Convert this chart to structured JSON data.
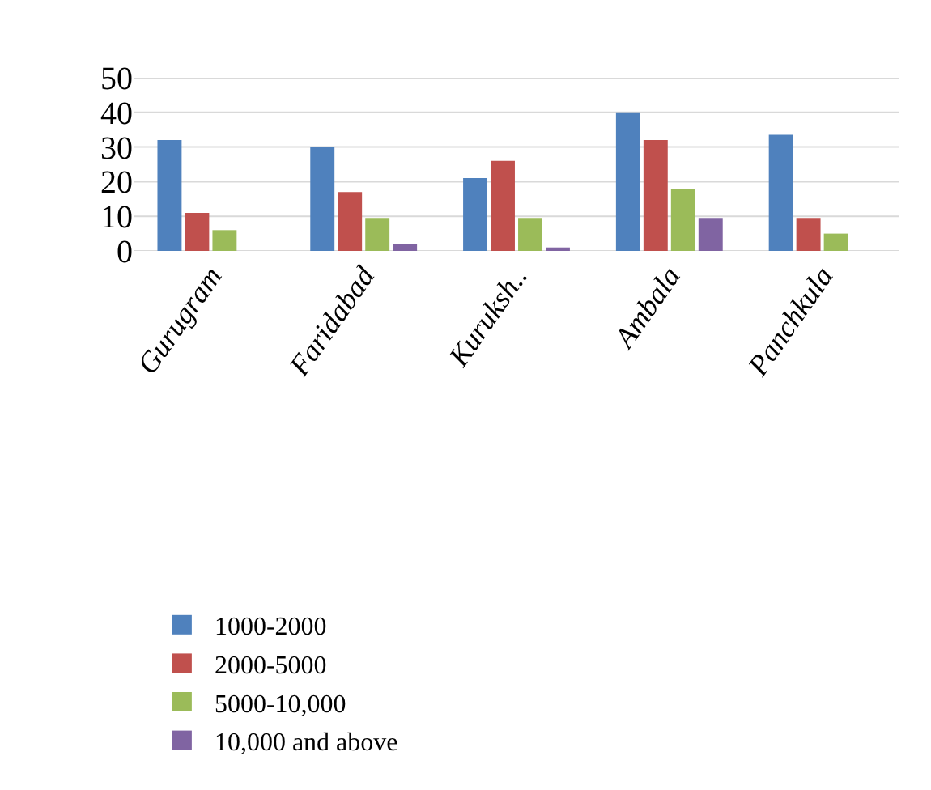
{
  "chart_data": {
    "type": "bar",
    "categories": [
      "Gurugram",
      "Faridabad",
      "Kuruksh..",
      "Ambala",
      "Panchkula"
    ],
    "series": [
      {
        "name": "1000-2000",
        "color": "#4f81bd",
        "values": [
          32,
          30,
          21,
          40,
          33.5
        ]
      },
      {
        "name": "2000-5000",
        "color": "#c0504d",
        "values": [
          11,
          17,
          26,
          32,
          9.5
        ]
      },
      {
        "name": "5000-10,000",
        "color": "#9bbb59",
        "values": [
          6,
          9.5,
          9.5,
          18,
          5
        ]
      },
      {
        "name": "10,000 and above",
        "color": "#8064a2",
        "values": [
          0,
          2,
          1,
          9.5,
          0
        ]
      }
    ],
    "ylim": [
      0,
      50
    ],
    "yticks": [
      0,
      10,
      20,
      30,
      40,
      50
    ],
    "grid": "y",
    "legend": "bottom"
  }
}
